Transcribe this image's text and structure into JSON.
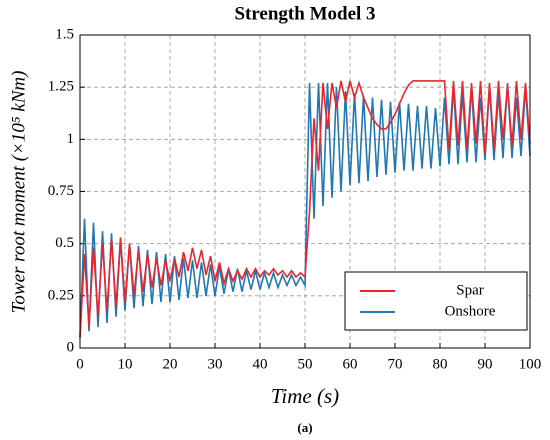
{
  "chart_data": {
    "type": "line",
    "title": "Strength Model 3",
    "caption": "(a)",
    "x_label": "Time (s)",
    "y_label": "Tower root moment (×10⁵ kNm)",
    "x": [
      0,
      1,
      2,
      3,
      4,
      5,
      6,
      7,
      8,
      9,
      10,
      11,
      12,
      13,
      14,
      15,
      16,
      17,
      18,
      19,
      20,
      21,
      22,
      23,
      24,
      25,
      26,
      27,
      28,
      29,
      30,
      31,
      32,
      33,
      34,
      35,
      36,
      37,
      38,
      39,
      40,
      41,
      42,
      43,
      44,
      45,
      46,
      47,
      48,
      49,
      50,
      51,
      52,
      53,
      54,
      55,
      56,
      57,
      58,
      59,
      60,
      61,
      62,
      63,
      64,
      65,
      66,
      67,
      68,
      69,
      70,
      71,
      72,
      73,
      74,
      75,
      76,
      77,
      78,
      79,
      80,
      81,
      82,
      83,
      84,
      85,
      86,
      87,
      88,
      89,
      90,
      91,
      92,
      93,
      94,
      95,
      96,
      97,
      98,
      99,
      100
    ],
    "series": [
      {
        "name": "Onshore",
        "color": "#1f77b4",
        "values": [
          0.05,
          0.62,
          0.08,
          0.6,
          0.1,
          0.56,
          0.12,
          0.55,
          0.15,
          0.52,
          0.18,
          0.5,
          0.19,
          0.49,
          0.2,
          0.47,
          0.21,
          0.46,
          0.22,
          0.45,
          0.22,
          0.44,
          0.23,
          0.43,
          0.24,
          0.42,
          0.24,
          0.41,
          0.25,
          0.4,
          0.25,
          0.39,
          0.26,
          0.38,
          0.27,
          0.38,
          0.27,
          0.37,
          0.28,
          0.37,
          0.28,
          0.36,
          0.29,
          0.36,
          0.29,
          0.35,
          0.3,
          0.35,
          0.3,
          0.34,
          0.3,
          1.27,
          0.62,
          1.27,
          0.68,
          1.27,
          0.72,
          1.25,
          0.75,
          1.23,
          0.78,
          1.22,
          0.79,
          1.21,
          0.8,
          1.2,
          0.82,
          1.19,
          0.83,
          1.18,
          0.84,
          1.18,
          0.85,
          1.17,
          0.85,
          1.16,
          0.86,
          1.16,
          0.86,
          1.15,
          0.87,
          1.2,
          0.88,
          1.25,
          0.88,
          1.22,
          0.89,
          1.25,
          0.89,
          1.2,
          0.9,
          1.25,
          0.9,
          1.22,
          0.91,
          1.27,
          0.91,
          1.2,
          0.92,
          1.25,
          0.92
        ]
      },
      {
        "name": "Spar",
        "color": "#e8262b",
        "values": [
          0.05,
          0.45,
          0.1,
          0.48,
          0.15,
          0.5,
          0.18,
          0.52,
          0.2,
          0.53,
          0.22,
          0.5,
          0.25,
          0.47,
          0.27,
          0.45,
          0.29,
          0.43,
          0.3,
          0.42,
          0.32,
          0.43,
          0.34,
          0.46,
          0.37,
          0.48,
          0.38,
          0.47,
          0.35,
          0.44,
          0.32,
          0.41,
          0.31,
          0.38,
          0.32,
          0.37,
          0.33,
          0.38,
          0.34,
          0.38,
          0.34,
          0.37,
          0.35,
          0.38,
          0.35,
          0.37,
          0.34,
          0.37,
          0.34,
          0.36,
          0.34,
          0.65,
          1.1,
          0.85,
          1.27,
          1.05,
          1.27,
          1.15,
          1.28,
          1.18,
          1.28,
          1.2,
          1.27,
          1.2,
          1.15,
          1.1,
          1.07,
          1.05,
          1.05,
          1.08,
          1.12,
          1.17,
          1.22,
          1.26,
          1.28,
          1.28,
          1.28,
          1.28,
          1.28,
          1.28,
          1.28,
          1.28,
          0.95,
          1.28,
          0.97,
          1.28,
          0.95,
          1.27,
          0.98,
          1.28,
          0.93,
          1.27,
          0.95,
          1.28,
          1.0,
          1.26,
          0.97,
          1.28,
          1.0,
          1.27,
          0.98
        ]
      }
    ],
    "legend_order": [
      "Spar",
      "Onshore"
    ],
    "xlim": [
      0,
      100
    ],
    "xticks": [
      0,
      10,
      20,
      30,
      40,
      50,
      60,
      70,
      80,
      90,
      100
    ],
    "ylim": [
      0,
      1.5
    ],
    "yticks": [
      0,
      0.25,
      0.5,
      0.75,
      1,
      1.25,
      1.5
    ],
    "grid": true,
    "legend_position": "lower right"
  }
}
